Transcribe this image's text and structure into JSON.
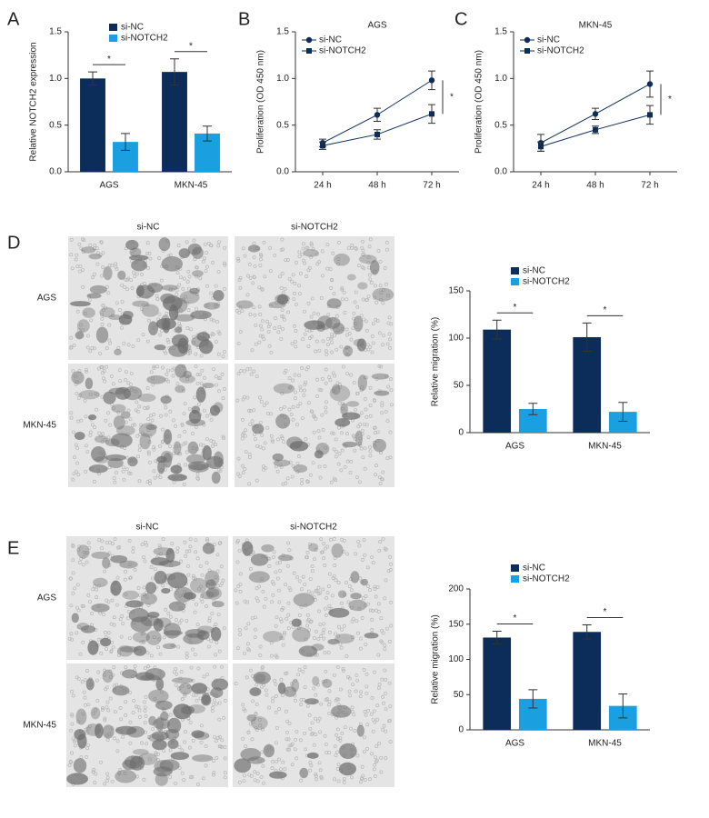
{
  "chart_data": [
    {
      "type": "bar",
      "panel_label": "A",
      "y_label": "Relative NOTCH2 expression",
      "categories": [
        "AGS",
        "MKN-45"
      ],
      "series": [
        {
          "name": "si-NC",
          "color": "#0c2d5a",
          "values": [
            1.0,
            1.07
          ],
          "errors": [
            0.07,
            0.14
          ]
        },
        {
          "name": "si-NOTCH2",
          "color": "#1a9fe0",
          "values": [
            0.32,
            0.41
          ],
          "errors": [
            0.09,
            0.08
          ]
        }
      ],
      "annotations": [
        "*",
        "*"
      ],
      "ylim": [
        0,
        1.5
      ],
      "yticks": [
        {
          "value": 0,
          "label": "0.0"
        },
        {
          "value": 0.5,
          "label": "0.5"
        },
        {
          "value": 1,
          "label": "1.0"
        },
        {
          "value": 1.5,
          "label": "1.5"
        }
      ]
    },
    {
      "type": "line",
      "panel_label": "B",
      "title": "AGS",
      "y_label": "Proliferation (OD 450 nm)",
      "categories": [
        "24 h",
        "48 h",
        "72 h"
      ],
      "series": [
        {
          "name": "si-NC",
          "color": "#0c2d5a",
          "marker": "circle",
          "values": [
            0.31,
            0.61,
            0.98
          ],
          "errors": [
            0.04,
            0.07,
            0.1
          ]
        },
        {
          "name": "si-NOTCH2",
          "color": "#0c2d5a",
          "marker": "square",
          "values": [
            0.28,
            0.4,
            0.62
          ],
          "errors": [
            0.04,
            0.05,
            0.1
          ]
        }
      ],
      "annotations": [
        "*"
      ],
      "ylim": [
        0,
        1.5
      ],
      "yticks": [
        {
          "value": 0,
          "label": "0.0"
        },
        {
          "value": 0.5,
          "label": "0.5"
        },
        {
          "value": 1,
          "label": "1.0"
        },
        {
          "value": 1.5,
          "label": "1.5"
        }
      ]
    },
    {
      "type": "line",
      "panel_label": "C",
      "title": "MKN-45",
      "y_label": "Proliferation (OD 450 nm)",
      "categories": [
        "24 h",
        "48 h",
        "72 h"
      ],
      "series": [
        {
          "name": "si-NC",
          "color": "#0c2d5a",
          "marker": "circle",
          "values": [
            0.31,
            0.62,
            0.94
          ],
          "errors": [
            0.09,
            0.06,
            0.14
          ]
        },
        {
          "name": "si-NOTCH2",
          "color": "#0c2d5a",
          "marker": "square",
          "values": [
            0.27,
            0.45,
            0.61
          ],
          "errors": [
            0.05,
            0.04,
            0.1
          ]
        }
      ],
      "annotations": [
        "*"
      ],
      "ylim": [
        0,
        1.5
      ],
      "yticks": [
        {
          "value": 0,
          "label": "0.0"
        },
        {
          "value": 0.5,
          "label": "0.5"
        },
        {
          "value": 1,
          "label": "1.0"
        },
        {
          "value": 1.5,
          "label": "1.5"
        }
      ]
    },
    {
      "type": "bar",
      "panel_label": "D",
      "y_label": "Relative migration (%)",
      "image_columns": [
        "si-NC",
        "si-NOTCH2"
      ],
      "image_rows": [
        "AGS",
        "MKN-45"
      ],
      "categories": [
        "AGS",
        "MKN-45"
      ],
      "series": [
        {
          "name": "si-NC",
          "color": "#0c2d5a",
          "values": [
            109,
            101
          ],
          "errors": [
            10,
            15
          ]
        },
        {
          "name": "si-NOTCH2",
          "color": "#1a9fe0",
          "values": [
            25,
            22
          ],
          "errors": [
            6,
            10
          ]
        }
      ],
      "annotations": [
        "*",
        "*"
      ],
      "ylim": [
        0,
        150
      ],
      "yticks": [
        0,
        50,
        100,
        150
      ]
    },
    {
      "type": "bar",
      "panel_label": "E",
      "y_label": "Relative migration (%)",
      "image_columns": [
        "si-NC",
        "si-NOTCH2"
      ],
      "image_rows": [
        "AGS",
        "MKN-45"
      ],
      "categories": [
        "AGS",
        "MKN-45"
      ],
      "series": [
        {
          "name": "si-NC",
          "color": "#0c2d5a",
          "values": [
            131,
            139
          ],
          "errors": [
            9,
            10
          ]
        },
        {
          "name": "si-NOTCH2",
          "color": "#1a9fe0",
          "values": [
            44,
            34
          ],
          "errors": [
            13,
            17
          ]
        }
      ],
      "annotations": [
        "*",
        "*"
      ],
      "ylim": [
        0,
        200
      ],
      "yticks": [
        0,
        50,
        100,
        150,
        200
      ]
    }
  ]
}
